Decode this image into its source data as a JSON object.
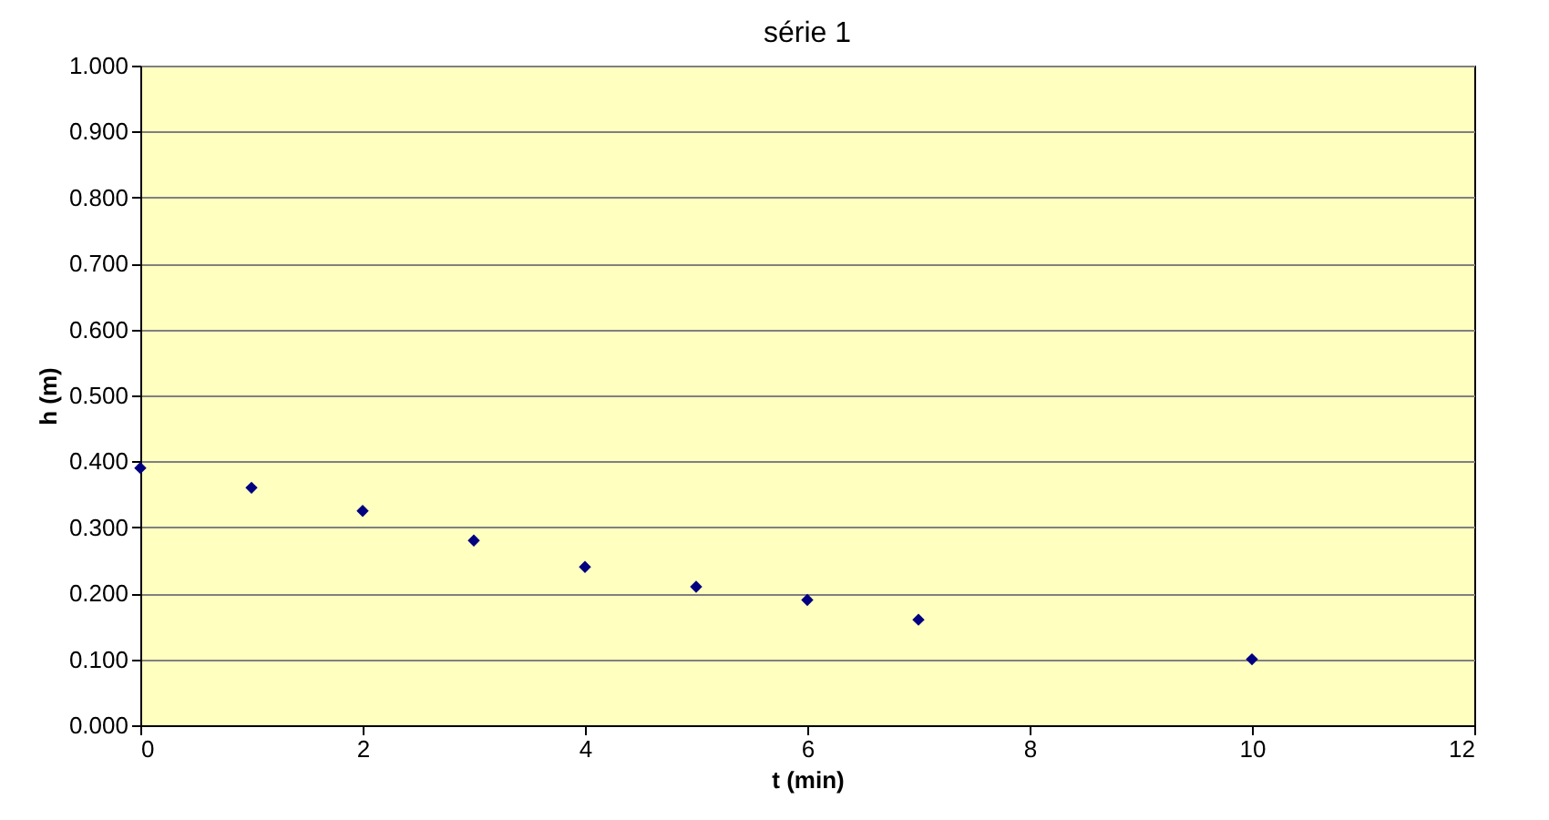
{
  "chart_data": {
    "type": "scatter",
    "title": "série 1",
    "xlabel": "t (min)",
    "ylabel": "h (m)",
    "x": [
      0,
      1,
      2,
      3,
      4,
      5,
      6,
      7,
      10
    ],
    "series": [
      {
        "color": "#000080",
        "values": [
          0.39,
          0.36,
          0.325,
          0.28,
          0.24,
          0.21,
          0.19,
          0.16,
          0.1
        ]
      }
    ],
    "marker": "diamond",
    "grid": "y",
    "xlim": [
      0,
      12
    ],
    "xticks": [
      0,
      2,
      4,
      6,
      8,
      10,
      12
    ],
    "ylim": [
      0,
      1
    ],
    "yticks": [
      {
        "value": 0,
        "label": "0.000"
      },
      {
        "value": 0.1,
        "label": "0.100"
      },
      {
        "value": 0.2,
        "label": "0.200"
      },
      {
        "value": 0.3,
        "label": "0.300"
      },
      {
        "value": 0.4,
        "label": "0.400"
      },
      {
        "value": 0.5,
        "label": "0.500"
      },
      {
        "value": 0.6,
        "label": "0.600"
      },
      {
        "value": 0.7,
        "label": "0.700"
      },
      {
        "value": 0.8,
        "label": "0.800"
      },
      {
        "value": 0.9,
        "label": "0.900"
      },
      {
        "value": 1,
        "label": "1.000"
      }
    ]
  }
}
